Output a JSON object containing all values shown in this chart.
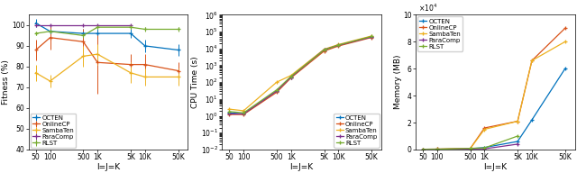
{
  "x_labels": [
    "50",
    "100",
    "500",
    "1K",
    "5K",
    "10K",
    "50K"
  ],
  "x_vals": [
    50,
    100,
    500,
    1000,
    5000,
    10000,
    50000
  ],
  "colors": {
    "OCTEN": "#0072BD",
    "OnlineCP": "#D95319",
    "SambaTen": "#EDB120",
    "ParaComp": "#7E2F8E",
    "RLST": "#77AC30"
  },
  "fitness": {
    "OCTEN": [
      101,
      97,
      96,
      96,
      96,
      90,
      88
    ],
    "OnlineCP": [
      88,
      94,
      92,
      82,
      81,
      81,
      78
    ],
    "SambaTen": [
      77,
      73,
      85,
      86,
      77,
      75,
      75
    ],
    "ParaComp": [
      100,
      100,
      100,
      100,
      100,
      null,
      null
    ],
    "RLST": [
      96,
      97,
      95,
      99,
      99,
      98,
      98
    ]
  },
  "fitness_err": {
    "OCTEN": [
      2,
      2,
      2,
      2,
      2,
      3,
      3
    ],
    "OnlineCP": [
      5,
      6,
      6,
      15,
      5,
      5,
      4
    ],
    "SambaTen": [
      4,
      3,
      5,
      5,
      5,
      4,
      4
    ],
    "ParaComp": [
      0,
      0,
      0,
      0,
      0,
      null,
      null
    ],
    "RLST": [
      1,
      1,
      1,
      1,
      1,
      1,
      1
    ]
  },
  "cpu": {
    "OCTEN": [
      1.5,
      1.3,
      30,
      200,
      8000,
      15000,
      50000
    ],
    "OnlineCP": [
      1.2,
      1.2,
      25,
      180,
      7000,
      14000,
      45000
    ],
    "SambaTen": [
      2.5,
      2.0,
      100,
      250,
      9000,
      17000,
      55000
    ],
    "ParaComp": [
      1.3,
      1.3,
      30,
      200,
      8500,
      15500,
      48000
    ],
    "RLST": [
      1.8,
      1.5,
      35,
      220,
      8200,
      16000,
      52000
    ]
  },
  "memory": {
    "OCTEN": [
      200,
      300,
      600,
      1500,
      6000,
      22000,
      60000
    ],
    "OnlineCP": [
      200,
      300,
      700,
      16000,
      21000,
      66000,
      90000
    ],
    "SambaTen": [
      200,
      300,
      700,
      15000,
      21000,
      66000,
      80000
    ],
    "ParaComp": [
      100,
      150,
      400,
      500,
      4000,
      null,
      null
    ],
    "RLST": [
      100,
      150,
      900,
      1200,
      10000,
      null,
      null
    ]
  },
  "fitness_ylim": [
    40,
    105
  ],
  "fitness_yticks": [
    40,
    50,
    60,
    70,
    80,
    90,
    100
  ],
  "memory_yticks": [
    0,
    20000,
    40000,
    60000,
    80000,
    100000
  ],
  "memory_ylim": [
    0,
    100000
  ],
  "xlabel": "I=J=K",
  "ylabel1": "Fitness (%)",
  "ylabel2": "CPU Time (s)",
  "ylabel3": "Memory (MB)",
  "legend_names": [
    "OCTEN",
    "OnlineCP",
    "SambaTen",
    "ParaComp",
    "RLST"
  ]
}
